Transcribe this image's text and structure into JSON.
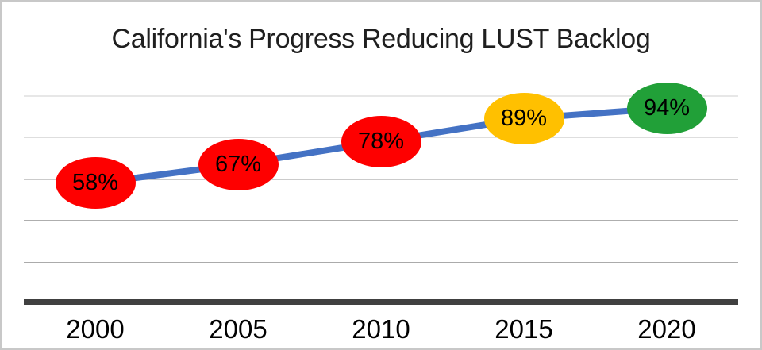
{
  "chart_data": {
    "type": "line",
    "title": "California's Progress Reducing LUST Backlog",
    "categories": [
      "2000",
      "2005",
      "2010",
      "2015",
      "2020"
    ],
    "values": [
      58,
      67,
      78,
      89,
      94
    ],
    "point_labels": [
      "58%",
      "67%",
      "78%",
      "89%",
      "94%"
    ],
    "point_colors": [
      "#fe0000",
      "#fe0000",
      "#fe0000",
      "#ffc000",
      "#21a038"
    ],
    "line_color": "#4472c4",
    "axis_color": "#404040",
    "marker_label_color": "#000000",
    "xlabel": "",
    "ylabel": "",
    "ylim": [
      0,
      100
    ],
    "gridline_values": [
      20,
      40,
      60,
      80,
      100
    ],
    "grid": "horizontal",
    "legend_position": "none"
  }
}
